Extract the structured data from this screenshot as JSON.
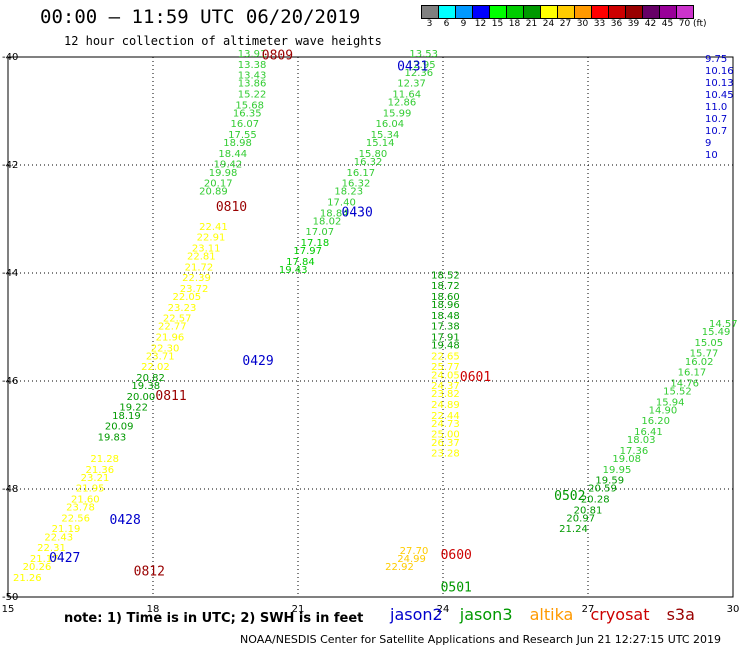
{
  "header": {
    "title": "00:00 – 11:59 UTC 06/20/2019",
    "subtitle": "12 hour collection of altimeter wave heights"
  },
  "legend": {
    "unit": "(ft)",
    "items": [
      {
        "label": "3",
        "color": "#808080"
      },
      {
        "label": "6",
        "color": "#00ffff"
      },
      {
        "label": "9",
        "color": "#0099ff"
      },
      {
        "label": "12",
        "color": "#0000ff"
      },
      {
        "label": "15",
        "color": "#00ff00"
      },
      {
        "label": "18",
        "color": "#00cc00"
      },
      {
        "label": "21",
        "color": "#009900"
      },
      {
        "label": "24",
        "color": "#ffff00"
      },
      {
        "label": "27",
        "color": "#ffcc00"
      },
      {
        "label": "30",
        "color": "#ff9900"
      },
      {
        "label": "33",
        "color": "#ff0000"
      },
      {
        "label": "36",
        "color": "#cc0000"
      },
      {
        "label": "39",
        "color": "#990000"
      },
      {
        "label": "42",
        "color": "#660066"
      },
      {
        "label": "45",
        "color": "#990099"
      },
      {
        "label": "70",
        "color": "#cc33cc"
      }
    ]
  },
  "map": {
    "lat_ticks": [
      "-40",
      "-42",
      "-44",
      "-46",
      "-48",
      "-50"
    ],
    "lon_ticks": [
      "15",
      "18",
      "21",
      "24",
      "27",
      "30"
    ],
    "lat_range": [
      -50,
      -40
    ],
    "lon_range": [
      15,
      30
    ],
    "grid": "dotted"
  },
  "colors": {
    "green": "#00cc00",
    "darkgreen": "#009900",
    "yellow": "#ffff00",
    "amber": "#ffcc00",
    "blue": "#0000cc",
    "darkred": "#990000",
    "red": "#cc0000"
  },
  "passes": [
    {
      "label": "0809",
      "lon": 20.25,
      "lat": -40.05,
      "color": "#990000"
    },
    {
      "label": "0810",
      "lon": 19.3,
      "lat": -42.85,
      "color": "#990000"
    },
    {
      "label": "0811",
      "lon": 18.05,
      "lat": -46.35,
      "color": "#990000"
    },
    {
      "label": "0812",
      "lon": 17.6,
      "lat": -49.6,
      "color": "#990000"
    },
    {
      "label": "0431",
      "lon": 23.05,
      "lat": -40.25,
      "color": "#0000cc"
    },
    {
      "label": "0430",
      "lon": 21.9,
      "lat": -42.95,
      "color": "#0000cc"
    },
    {
      "label": "0429",
      "lon": 19.85,
      "lat": -45.7,
      "color": "#0000cc"
    },
    {
      "label": "0428",
      "lon": 17.1,
      "lat": -48.65,
      "color": "#0000cc"
    },
    {
      "label": "0427",
      "lon": 15.85,
      "lat": -49.35,
      "color": "#0000cc"
    },
    {
      "label": "0601",
      "lon": 24.35,
      "lat": -46.0,
      "color": "#cc0000"
    },
    {
      "label": "0600",
      "lon": 23.95,
      "lat": -49.3,
      "color": "#cc0000"
    },
    {
      "label": "0502",
      "lon": 26.3,
      "lat": -48.2,
      "color": "#009900"
    },
    {
      "label": "0501",
      "lon": 23.95,
      "lat": -49.9,
      "color": "#009900"
    }
  ],
  "tracks": [
    {
      "color": "#33cc33",
      "x": [
        20.05,
        20.05,
        20.05,
        20.05,
        20.05,
        20.0,
        19.95,
        19.9,
        19.85,
        19.75,
        19.65,
        19.55,
        19.45,
        19.35,
        19.25
      ],
      "y": [
        -40.0,
        -40.2,
        -40.4,
        -40.55,
        -40.75,
        -40.95,
        -41.1,
        -41.3,
        -41.5,
        -41.65,
        -41.85,
        -42.05,
        -42.2,
        -42.4,
        -42.55
      ],
      "v": [
        "13.91",
        "13.38",
        "13.43",
        "13.86",
        "15.22",
        "15.68",
        "16.35",
        "16.07",
        "17.55",
        "18.98",
        "18.44",
        "19.42",
        "19.98",
        "20.17",
        "20.89"
      ]
    },
    {
      "color": "#ffff00",
      "x": [
        19.25,
        19.2,
        19.1,
        19.0,
        18.95,
        18.9,
        18.85,
        18.7,
        18.6,
        18.5,
        18.4,
        18.35,
        18.25,
        18.15,
        18.05
      ],
      "y": [
        -43.2,
        -43.4,
        -43.6,
        -43.75,
        -43.95,
        -44.15,
        -44.35,
        -44.5,
        -44.7,
        -44.9,
        -45.05,
        -45.25,
        -45.45,
        -45.6,
        -45.8
      ],
      "v": [
        "22.41",
        "22.91",
        "23.11",
        "22.81",
        "21.72",
        "22.39",
        "23.72",
        "22.05",
        "23.23",
        "22.57",
        "22.77",
        "21.96",
        "22.30",
        "23.71",
        "22.02"
      ]
    },
    {
      "color": "#009900",
      "x": [
        17.95,
        17.85,
        17.75,
        17.6,
        17.45,
        17.3,
        17.15
      ],
      "y": [
        -46.0,
        -46.15,
        -46.35,
        -46.55,
        -46.7,
        -46.9,
        -47.1
      ],
      "v": [
        "20.82",
        "19.38",
        "20.00",
        "19.22",
        "18.19",
        "20.09",
        "19.83"
      ]
    },
    {
      "color": "#ffff00",
      "x": [
        17.0,
        16.9,
        16.8,
        16.7,
        16.6,
        16.5,
        16.4,
        16.2,
        16.05,
        15.9,
        15.75,
        15.6,
        15.4
      ],
      "y": [
        -47.5,
        -47.7,
        -47.85,
        -48.05,
        -48.25,
        -48.4,
        -48.6,
        -48.8,
        -48.95,
        -49.15,
        -49.35,
        -49.5,
        -49.7
      ],
      "v": [
        "21.28",
        "21.36",
        "23.21",
        "21.95",
        "21.60",
        "23.78",
        "22.56",
        "21.19",
        "22.43",
        "22.31",
        "21.17",
        "20.26",
        "21.26"
      ]
    },
    {
      "color": "#33cc33",
      "x": [
        23.6,
        23.55,
        23.5,
        23.35,
        23.25,
        23.15,
        23.05,
        22.9,
        22.8,
        22.7,
        22.55,
        22.45,
        22.3,
        22.2,
        22.05,
        21.9,
        21.75,
        21.6,
        21.45
      ],
      "y": [
        -40.0,
        -40.2,
        -40.35,
        -40.55,
        -40.75,
        -40.9,
        -41.1,
        -41.3,
        -41.5,
        -41.65,
        -41.85,
        -42.0,
        -42.2,
        -42.4,
        -42.55,
        -42.75,
        -42.95,
        -43.1,
        -43.3
      ],
      "v": [
        "13.53",
        "12.95",
        "12.36",
        "12.37",
        "11.64",
        "12.86",
        "15.99",
        "16.04",
        "15.34",
        "15.14",
        "15.80",
        "16.32",
        "16.17",
        "16.32",
        "18.23",
        "17.40",
        "18.84",
        "18.02",
        "17.07"
      ]
    },
    {
      "color": "#00cc00",
      "x": [
        21.35,
        21.2,
        21.05,
        20.9
      ],
      "y": [
        -43.5,
        -43.65,
        -43.85,
        -44.0
      ],
      "v": [
        "17.18",
        "17.97",
        "17.84",
        "19.43"
      ]
    },
    {
      "color": "#009900",
      "x": [
        24.05,
        24.05,
        24.05,
        24.05,
        24.05,
        24.05,
        24.05,
        24.05
      ],
      "y": [
        -44.1,
        -44.3,
        -44.5,
        -44.65,
        -44.85,
        -45.05,
        -45.25,
        -45.4
      ],
      "v": [
        "18.52",
        "18.72",
        "18.60",
        "18.96",
        "18.48",
        "17.38",
        "17.91",
        "19.48"
      ]
    },
    {
      "color": "#ffff00",
      "x": [
        24.05,
        24.05,
        24.05,
        24.05,
        24.05,
        24.05,
        24.05,
        24.05,
        24.05,
        24.05,
        24.05
      ],
      "y": [
        -45.6,
        -45.8,
        -45.95,
        -46.15,
        -46.3,
        -46.5,
        -46.7,
        -46.85,
        -47.05,
        -47.2,
        -47.4
      ],
      "v": [
        "22.65",
        "25.77",
        "24.05",
        "24.37",
        "23.82",
        "24.89",
        "22.44",
        "24.73",
        "25.00",
        "26.37",
        "23.28"
      ]
    },
    {
      "color": "#ffcc00",
      "x": [
        23.4,
        23.35,
        23.1
      ],
      "y": [
        -49.2,
        -49.35,
        -49.5
      ],
      "v": [
        "27.70",
        "24.99",
        "22.92"
      ]
    },
    {
      "color": "#33cc33",
      "x": [
        29.8,
        29.65,
        29.5,
        29.4,
        29.3,
        29.15,
        29.0,
        28.85,
        28.7,
        28.55,
        28.4,
        28.25,
        28.1,
        27.95,
        27.8,
        27.6
      ],
      "y": [
        -45.0,
        -45.15,
        -45.35,
        -45.55,
        -45.7,
        -45.9,
        -46.1,
        -46.25,
        -46.45,
        -46.6,
        -46.8,
        -47.0,
        -47.15,
        -47.35,
        -47.5,
        -47.7
      ],
      "v": [
        "14.57",
        "15.49",
        "15.05",
        "15.77",
        "16.02",
        "16.17",
        "14.76",
        "15.52",
        "15.94",
        "14.90",
        "16.20",
        "16.41",
        "18.03",
        "17.36",
        "19.08",
        "19.95"
      ]
    },
    {
      "color": "#009900",
      "x": [
        27.45,
        27.3,
        27.15,
        27.0,
        26.85,
        26.7
      ],
      "y": [
        -47.9,
        -48.05,
        -48.25,
        -48.45,
        -48.6,
        -48.8
      ],
      "v": [
        "19.59",
        "20.59",
        "20.28",
        "20.81",
        "20.97",
        "21.24"
      ]
    }
  ],
  "right_edge": {
    "color": "#0000cc",
    "lines": [
      "9.75",
      "10.16",
      "10.13",
      "10.45",
      "11.0",
      "10.7",
      "10.7",
      "9",
      "10"
    ]
  },
  "footer": {
    "note": "note:  1) Time is in UTC;  2) SWH is in feet",
    "sats": [
      {
        "label": "jason2",
        "color": "#0000cc"
      },
      {
        "label": "jason3",
        "color": "#009900"
      },
      {
        "label": "altika",
        "color": "#ff9900"
      },
      {
        "label": "cryosat",
        "color": "#cc0000"
      },
      {
        "label": "s3a",
        "color": "#990000"
      }
    ],
    "credit": "NOAA/NESDIS Center for Satellite Applications and Research    Jun 21 12:27:15 UTC 2019"
  }
}
